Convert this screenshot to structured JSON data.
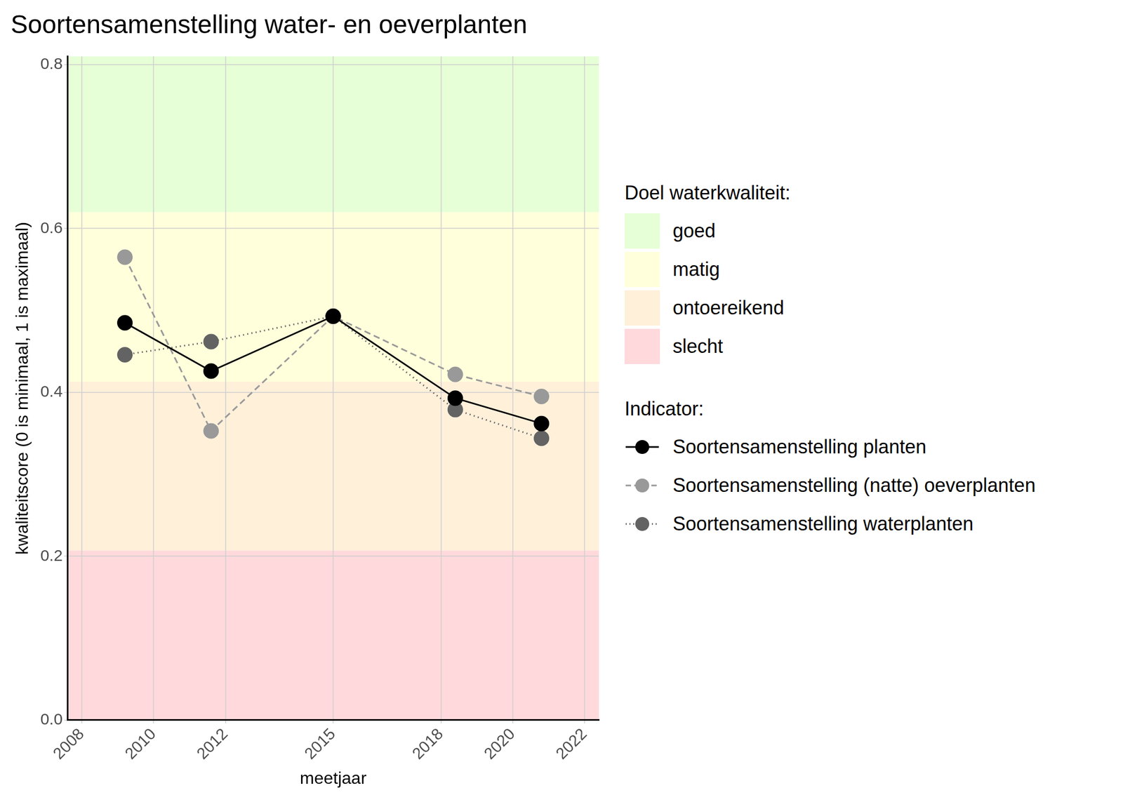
{
  "chart_data": {
    "type": "line",
    "title": "Soortensamenstelling water- en oeverplanten",
    "x_label": "meetjaar",
    "y_label": "kwaliteitscore (0 is minimaal, 1 is maximaal)",
    "x": [
      2009.2,
      2011.6,
      2015,
      2018.4,
      2020.8
    ],
    "xlim": [
      2007.6,
      2022.4
    ],
    "xticks": [
      2008,
      2010,
      2012,
      2015,
      2018,
      2020,
      2022
    ],
    "ylim": [
      0,
      0.81
    ],
    "yticks": [
      {
        "value": 0,
        "label": "0.0"
      },
      0.2,
      0.4,
      0.6,
      0.8
    ],
    "grid": true,
    "legend": "right",
    "legend_title": "Indicator:",
    "series": [
      {
        "name": "Soortensamenstelling planten",
        "color": "#000000",
        "marker": "circle",
        "line_style": "solid",
        "values": [
          0.485,
          0.426,
          0.493,
          0.393,
          0.362
        ]
      },
      {
        "name": "Soortensamenstelling (natte) oeverplanten",
        "color": "#999999",
        "marker": "circle",
        "line_style": "dashed",
        "values": [
          0.565,
          0.353,
          0.493,
          0.422,
          0.395
        ]
      },
      {
        "name": "Soortensamenstelling waterplanten",
        "color": "#636363",
        "marker": "circle",
        "line_style": "dotted",
        "values": [
          0.446,
          0.462,
          0.493,
          0.379,
          0.344
        ]
      }
    ],
    "bands_title": "Doel waterkwaliteit:",
    "bands": [
      {
        "name": "goed",
        "from": 0.62,
        "to": 1,
        "color": "#e6ffd6"
      },
      {
        "name": "matig",
        "from": 0.413,
        "to": 0.62,
        "color": "#ffffdb"
      },
      {
        "name": "ontoereikend",
        "from": 0.207,
        "to": 0.413,
        "color": "#fff0da"
      },
      {
        "name": "slecht",
        "from": 0,
        "to": 0.207,
        "color": "#ffd9dc"
      }
    ]
  }
}
